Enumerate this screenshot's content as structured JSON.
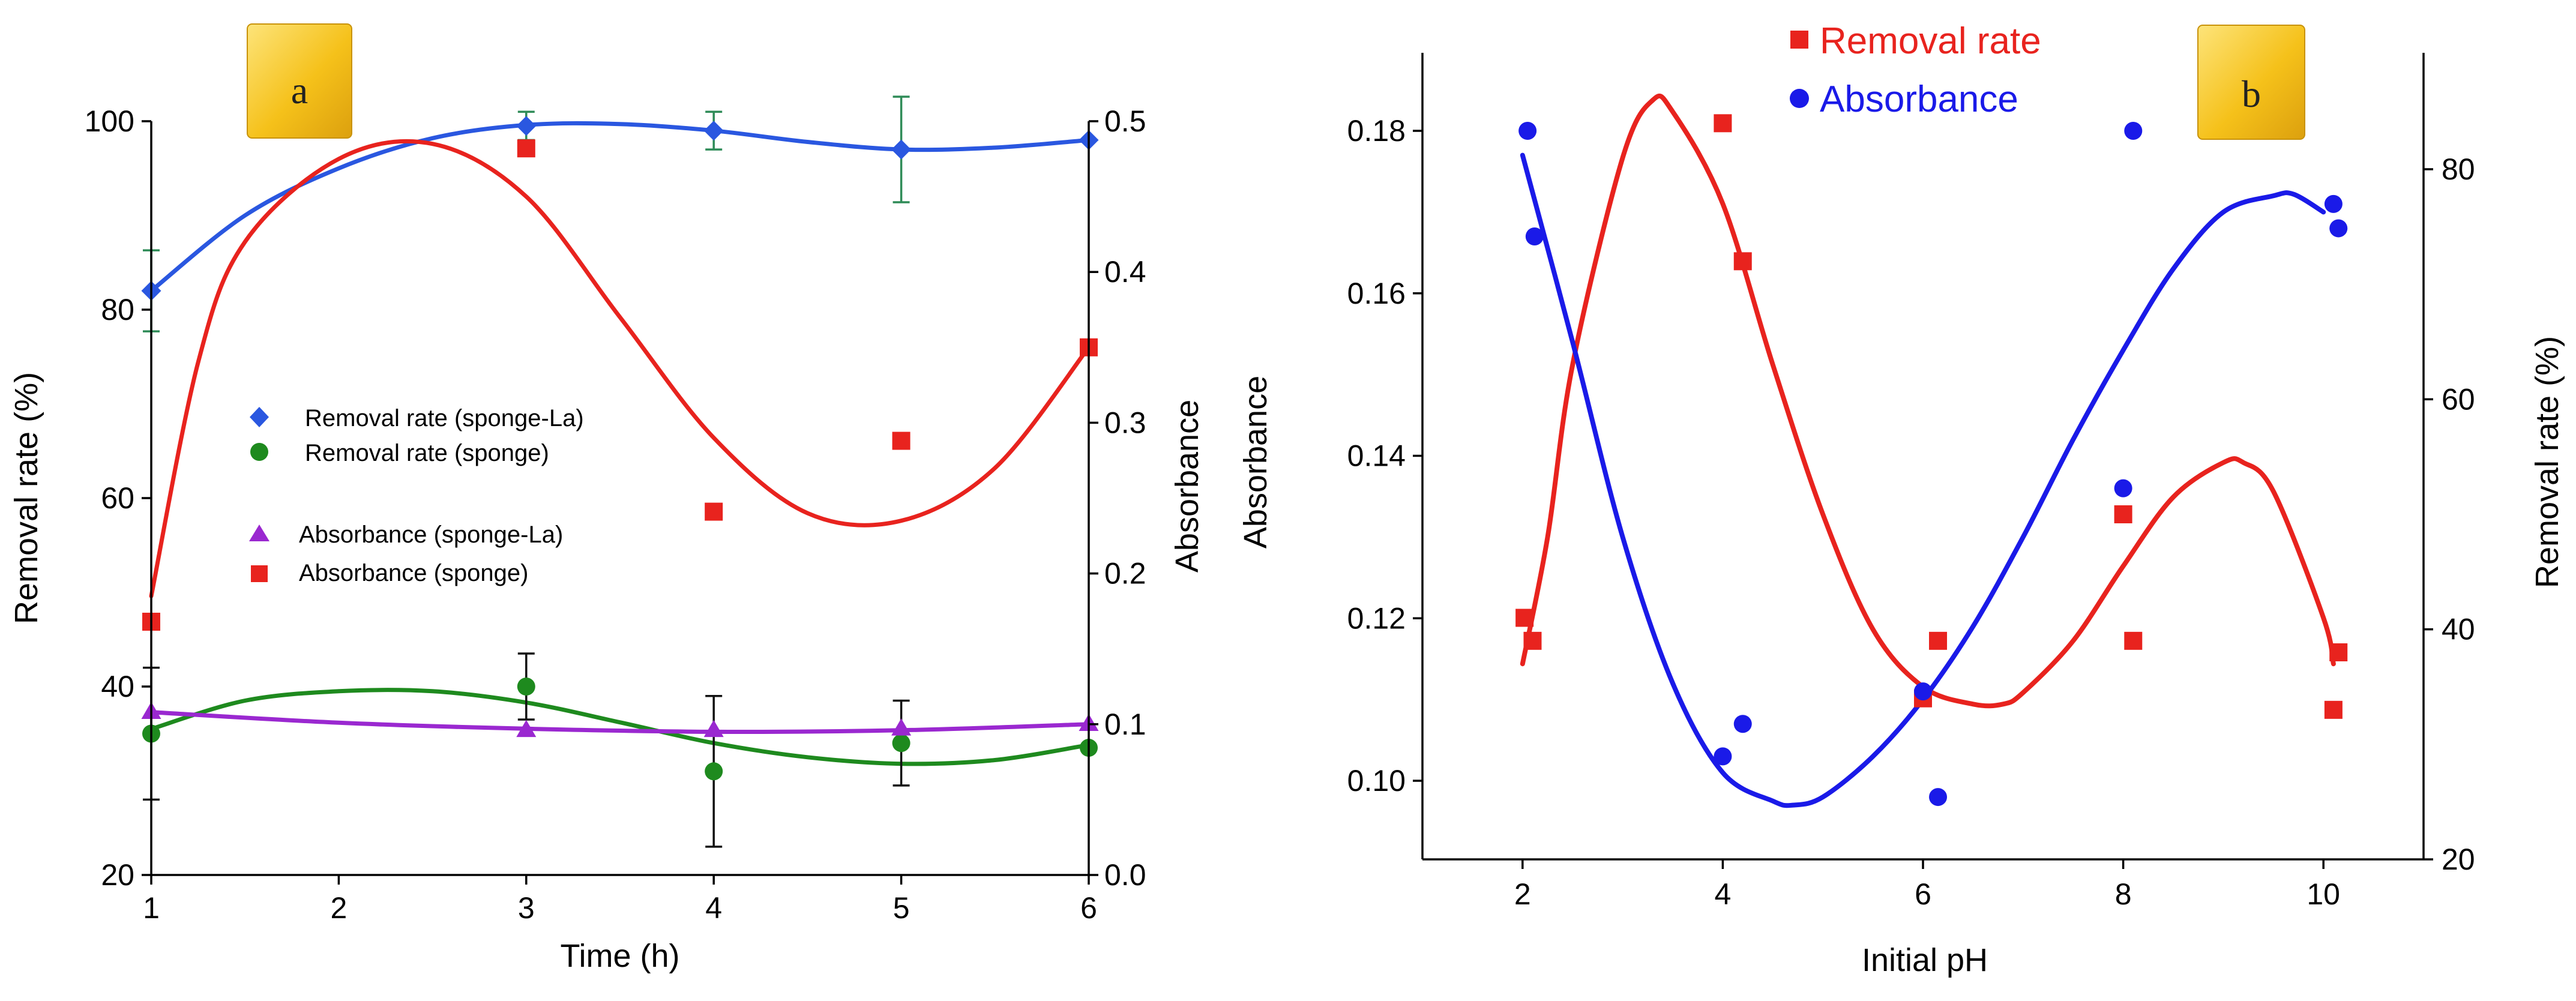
{
  "chart_data": [
    {
      "panel": "a",
      "type": "scatter",
      "xlabel": "Time (h)",
      "ylabel": "Removal rate (%)",
      "y2label": "Absorbance",
      "xlim": [
        1,
        6
      ],
      "ylim": [
        20,
        100
      ],
      "y2lim": [
        0.0,
        0.5
      ],
      "xticks": [
        "1",
        "2",
        "3",
        "4",
        "5",
        "6"
      ],
      "yticks": [
        "20",
        "40",
        "60",
        "80",
        "100"
      ],
      "y2ticks": [
        "0.0",
        "0.1",
        "0.2",
        "0.3",
        "0.4",
        "0.5"
      ],
      "legend": [
        "Removal rate (sponge-La)",
        "Removal rate (sponge)",
        "Absorbance (sponge-La)",
        "Absorbance (sponge)"
      ],
      "series": [
        {
          "name": "Removal rate (sponge-La)",
          "axis": "left",
          "marker": "diamond",
          "color": "#2a57e0",
          "x": [
            1,
            3,
            4,
            5,
            6
          ],
          "y": [
            82,
            99.5,
            99,
            97,
            98
          ],
          "err": [
            4.3,
            1.5,
            2,
            5.6,
            0
          ],
          "errColor": "#2e8b57",
          "fit_x": [
            1,
            1.5,
            2,
            2.5,
            3,
            3.5,
            4,
            4.5,
            5,
            5.5,
            6
          ],
          "fit_y": [
            82,
            90,
            95,
            98.2,
            99.6,
            99.7,
            99,
            97.8,
            97,
            97.2,
            98
          ]
        },
        {
          "name": "Removal rate (sponge)",
          "axis": "left",
          "marker": "circle",
          "color": "#1e8a1e",
          "x": [
            1,
            3,
            4,
            5,
            6
          ],
          "y": [
            35,
            40,
            31,
            34,
            33.5
          ],
          "err": [
            7,
            3.5,
            8,
            4.5,
            0
          ],
          "errColor": "#111111",
          "fit_x": [
            1,
            1.5,
            2,
            2.5,
            3,
            3.5,
            4,
            4.5,
            5,
            5.5,
            6
          ],
          "fit_y": [
            35.5,
            38.5,
            39.5,
            39.5,
            38.3,
            36.2,
            34,
            32.5,
            31.8,
            32.2,
            33.8
          ]
        },
        {
          "name": "Absorbance (sponge-La)",
          "axis": "right",
          "marker": "triangle",
          "color": "#9a28d0",
          "x": [
            1,
            3,
            4,
            5,
            6
          ],
          "y": [
            0.108,
            0.096,
            0.096,
            0.097,
            0.1
          ],
          "fit_x": [
            1,
            2,
            3,
            4,
            5,
            6
          ],
          "fit_y": [
            0.108,
            0.101,
            0.097,
            0.095,
            0.096,
            0.1
          ]
        },
        {
          "name": "Absorbance (sponge)",
          "axis": "right",
          "marker": "square",
          "color": "#e8231e",
          "x": [
            1,
            3,
            4,
            5,
            6
          ],
          "y": [
            0.168,
            0.482,
            0.241,
            0.288,
            0.35
          ],
          "fit_x": [
            1,
            1.25,
            1.5,
            2,
            2.5,
            3,
            3.5,
            4,
            4.5,
            5,
            5.5,
            6
          ],
          "fit_y": [
            0.185,
            0.34,
            0.42,
            0.475,
            0.485,
            0.45,
            0.37,
            0.29,
            0.24,
            0.235,
            0.27,
            0.35
          ]
        }
      ]
    },
    {
      "panel": "b",
      "type": "scatter",
      "xlabel": "Initial pH",
      "ylabel": "Absorbance",
      "y2label": "Removal rate (%)",
      "xlim": [
        1,
        11
      ],
      "ylim": [
        0.09,
        0.19
      ],
      "y2lim": [
        20,
        90
      ],
      "xticks": [
        "2",
        "4",
        "6",
        "8",
        "10"
      ],
      "yticks": [
        "0.10",
        "0.12",
        "0.14",
        "0.16",
        "0.18"
      ],
      "y2ticks": [
        "20",
        "40",
        "60",
        "80"
      ],
      "legend": [
        "Removal rate",
        "Absorbance"
      ],
      "series": [
        {
          "name": "Removal rate",
          "axis": "right",
          "marker": "square",
          "color": "#e8231e",
          "x": [
            2.02,
            2.1,
            4.0,
            4.2,
            6.0,
            6.15,
            8.0,
            8.1,
            10.1,
            10.15
          ],
          "y": [
            41,
            39,
            84,
            72,
            34,
            39,
            50,
            39,
            33,
            38
          ],
          "fit_x": [
            2.0,
            2.25,
            2.5,
            3.0,
            3.3,
            3.5,
            4.0,
            4.5,
            5.0,
            5.5,
            6.0,
            6.5,
            6.8,
            7.0,
            7.5,
            8.0,
            8.5,
            9.0,
            9.2,
            9.5,
            10.0,
            10.1
          ],
          "fit_y": [
            37,
            48,
            63,
            81,
            86,
            85,
            77,
            63,
            50,
            40,
            35,
            33.5,
            33.5,
            34.5,
            39,
            45.5,
            51.5,
            54.5,
            54.5,
            52,
            41,
            37
          ]
        },
        {
          "name": "Absorbance",
          "axis": "left",
          "marker": "circle",
          "color": "#1a1ae8",
          "x": [
            2.05,
            2.12,
            4.0,
            4.2,
            6.0,
            6.15,
            8.0,
            8.1,
            10.1,
            10.15
          ],
          "y": [
            0.18,
            0.167,
            0.103,
            0.107,
            0.111,
            0.098,
            0.136,
            0.18,
            0.171,
            0.168
          ],
          "fit_x": [
            2.0,
            2.5,
            3.0,
            3.5,
            4.0,
            4.5,
            4.7,
            5.0,
            5.5,
            6.0,
            6.5,
            7.0,
            7.5,
            8.0,
            8.5,
            9.0,
            9.5,
            9.7,
            10.0
          ],
          "fit_y": [
            0.177,
            0.154,
            0.13,
            0.112,
            0.101,
            0.0975,
            0.097,
            0.098,
            0.103,
            0.11,
            0.119,
            0.13,
            0.142,
            0.153,
            0.163,
            0.17,
            0.172,
            0.1722,
            0.17
          ]
        }
      ]
    }
  ]
}
